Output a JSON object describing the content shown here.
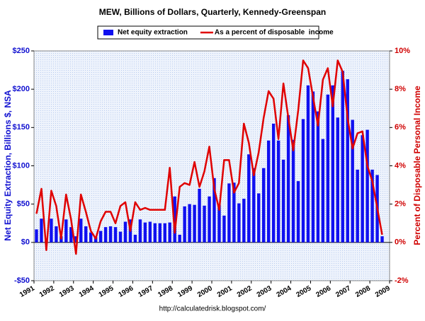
{
  "chart_data": {
    "type": "bar_line",
    "title": "MEW, Billions of Dollars, Quarterly, Kennedy-Greenspan",
    "source": "http://calculatedrisk.blogspot.com/",
    "ylabel": "Net Equity Extraction, Billions $, NSA",
    "y2label": "Percent of Disposable Personal Income",
    "x": [
      1991.125,
      1991.375,
      1991.625,
      1991.875,
      1992.125,
      1992.375,
      1992.625,
      1992.875,
      1993.125,
      1993.375,
      1993.625,
      1993.875,
      1994.125,
      1994.375,
      1994.625,
      1994.875,
      1995.125,
      1995.375,
      1995.625,
      1995.875,
      1996.125,
      1996.375,
      1996.625,
      1996.875,
      1997.125,
      1997.375,
      1997.625,
      1997.875,
      1998.125,
      1998.375,
      1998.625,
      1998.875,
      1999.125,
      1999.375,
      1999.625,
      1999.875,
      2000.125,
      2000.375,
      2000.625,
      2000.875,
      2001.125,
      2001.375,
      2001.625,
      2001.875,
      2002.125,
      2002.375,
      2002.625,
      2002.875,
      2003.125,
      2003.375,
      2003.625,
      2003.875,
      2004.125,
      2004.375,
      2004.625,
      2004.875,
      2005.125,
      2005.375,
      2005.625,
      2005.875,
      2006.125,
      2006.375,
      2006.625,
      2006.875,
      2007.125,
      2007.375,
      2007.625,
      2007.875,
      2008.125,
      2008.375,
      2008.625
    ],
    "series": [
      {
        "name": "Net equity extraction",
        "color": "#1010f0",
        "kind": "bar",
        "values": [
          17,
          31,
          5,
          31,
          21,
          8,
          30,
          20,
          8,
          31,
          21,
          13,
          7,
          15,
          20,
          21,
          20,
          14,
          27,
          30,
          10,
          30,
          26,
          27,
          25,
          25,
          25,
          26,
          60,
          10,
          47,
          50,
          49,
          70,
          48,
          60,
          84,
          49,
          35,
          77,
          78,
          51,
          57,
          115,
          97,
          64,
          97,
          133,
          155,
          133,
          108,
          166,
          134,
          80,
          161,
          205,
          197,
          171,
          135,
          193,
          205,
          163,
          224,
          213,
          160,
          95,
          140,
          147,
          95,
          88,
          8
        ]
      },
      {
        "name": "As a percent of disposable  income",
        "color": "#e00000",
        "kind": "line",
        "axis": "y2",
        "values": [
          1.5,
          2.8,
          -0.4,
          2.7,
          1.9,
          0.2,
          2.5,
          1.2,
          -0.6,
          2.5,
          1.6,
          0.6,
          0.2,
          1.1,
          1.6,
          1.6,
          1.0,
          1.9,
          2.1,
          0.6,
          2.1,
          1.7,
          1.8,
          1.7,
          1.7,
          1.7,
          1.7,
          3.9,
          0.5,
          2.9,
          3.1,
          3.0,
          4.2,
          2.9,
          3.7,
          5.0,
          2.8,
          1.7,
          4.3,
          4.3,
          2.6,
          3.1,
          6.2,
          5.2,
          3.5,
          4.7,
          6.5,
          7.9,
          7.5,
          5.4,
          8.3,
          6.5,
          4.8,
          6.9,
          9.5,
          9.1,
          7.6,
          6.1,
          8.5,
          9.1,
          7.1,
          9.5,
          8.9,
          6.5,
          4.9,
          5.7,
          5.8,
          4.0,
          3.2,
          1.8,
          0.4
        ]
      }
    ],
    "xlim": [
      1991,
      2009
    ],
    "xticks": [
      1991,
      1992,
      1993,
      1994,
      1995,
      1996,
      1997,
      1998,
      1999,
      2000,
      2001,
      2002,
      2003,
      2004,
      2005,
      2006,
      2007,
      2008,
      2009
    ],
    "ylim": [
      -50,
      250
    ],
    "yticks": [
      {
        "value": -50,
        "label": "-$50"
      },
      {
        "value": 0,
        "label": "$0"
      },
      {
        "value": 50,
        "label": "$50"
      },
      {
        "value": 100,
        "label": "$100"
      },
      {
        "value": 150,
        "label": "$150"
      },
      {
        "value": 200,
        "label": "$200"
      },
      {
        "value": 250,
        "label": "$250"
      }
    ],
    "y2lim": [
      -2,
      10
    ],
    "y2ticks": [
      {
        "value": -2,
        "label": "-2%"
      },
      {
        "value": 0,
        "label": "0%"
      },
      {
        "value": 2,
        "label": "2%"
      },
      {
        "value": 4,
        "label": "4%"
      },
      {
        "value": 6,
        "label": "6%"
      },
      {
        "value": 8,
        "label": "8%"
      },
      {
        "value": 10,
        "label": "10%"
      }
    ],
    "legend": "top"
  }
}
